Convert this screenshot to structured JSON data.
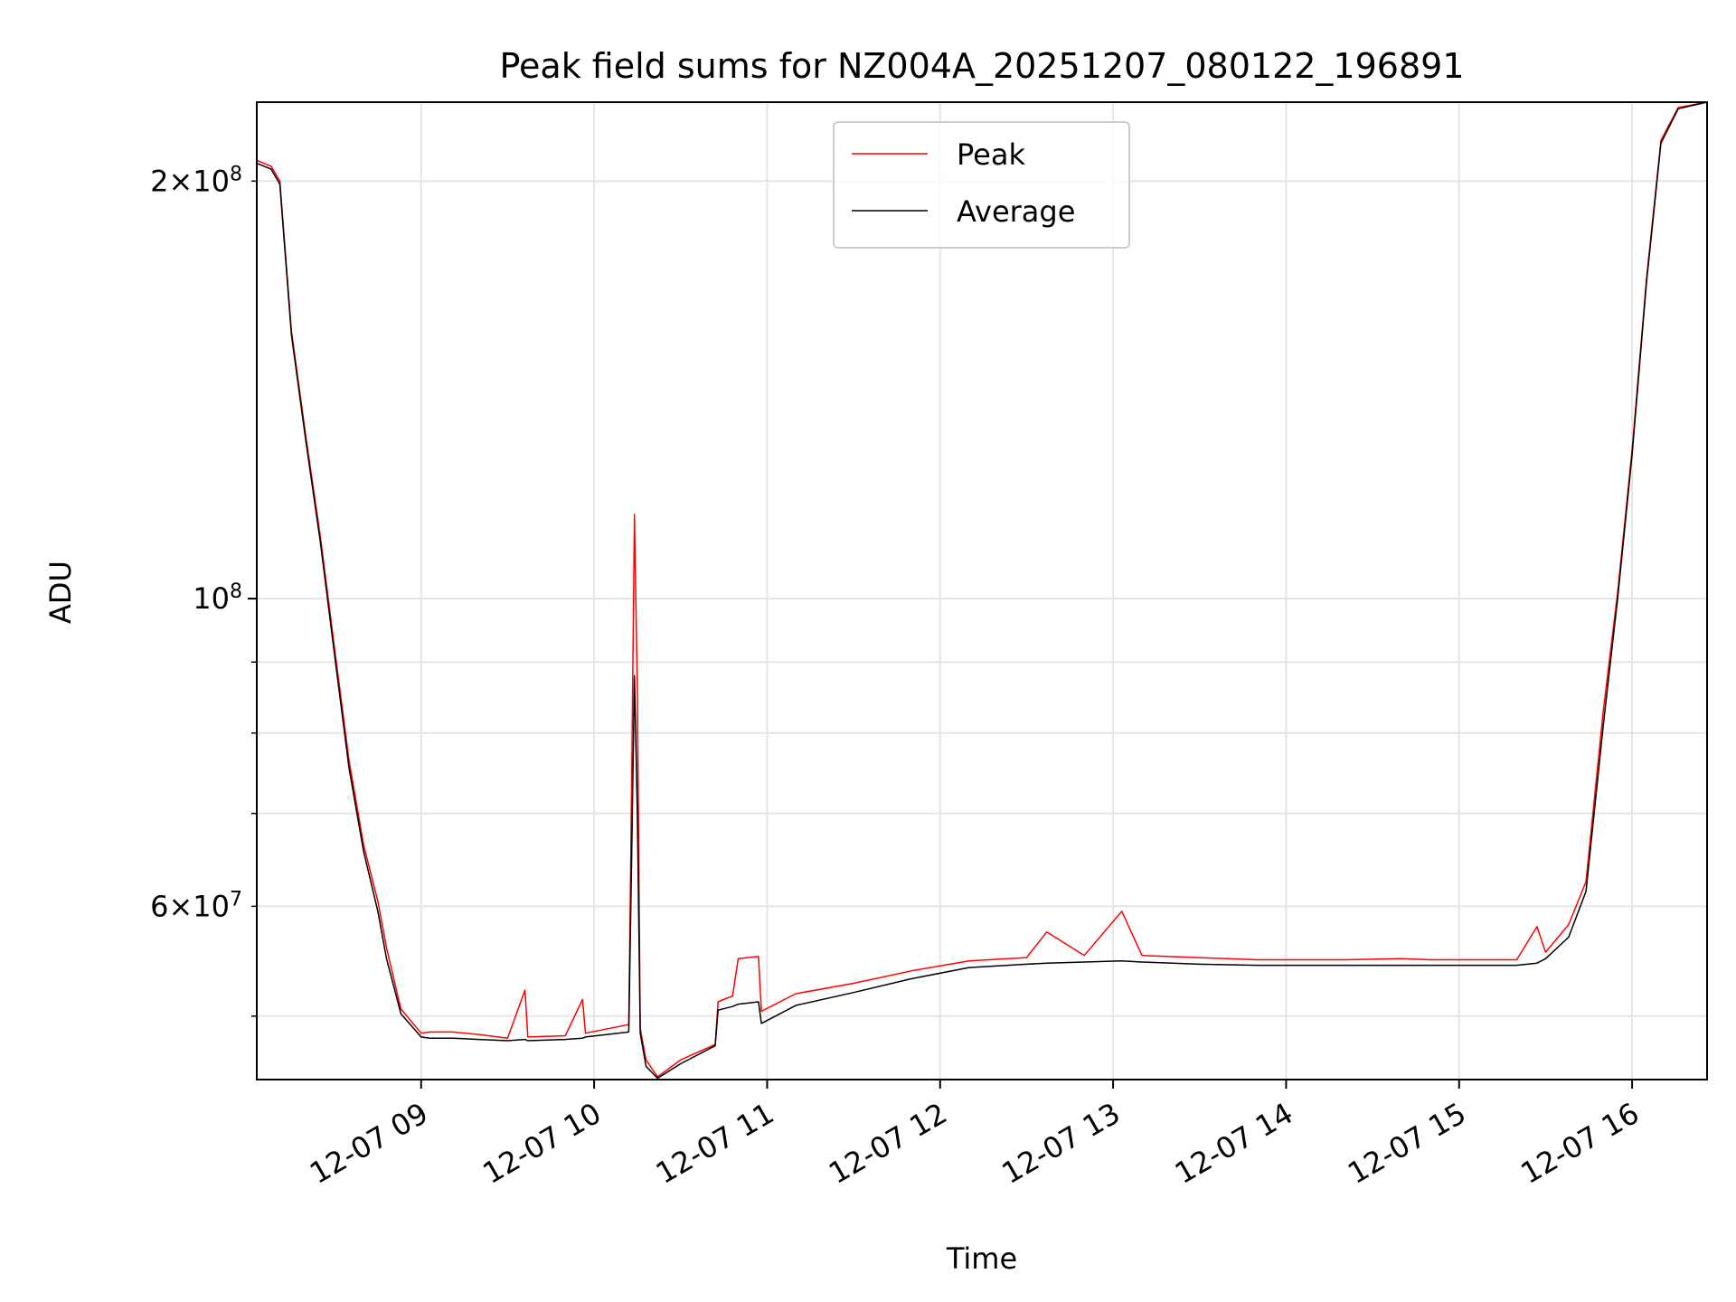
{
  "chart_data": {
    "type": "line",
    "title": "Peak field sums for NZ004A_20251207_080122_196891",
    "xlabel": "Time",
    "ylabel": "ADU",
    "y_scale": "log",
    "x_range": [
      "2025-12-07 08:03",
      "2025-12-07 16:26"
    ],
    "ylim": [
      45000000,
      228000000
    ],
    "x_ticks": [
      {
        "t": "2025-12-07 09:00",
        "label": "12-07 09"
      },
      {
        "t": "2025-12-07 10:00",
        "label": "12-07 10"
      },
      {
        "t": "2025-12-07 11:00",
        "label": "12-07 11"
      },
      {
        "t": "2025-12-07 12:00",
        "label": "12-07 12"
      },
      {
        "t": "2025-12-07 13:00",
        "label": "12-07 13"
      },
      {
        "t": "2025-12-07 14:00",
        "label": "12-07 14"
      },
      {
        "t": "2025-12-07 15:00",
        "label": "12-07 15"
      },
      {
        "t": "2025-12-07 16:00",
        "label": "12-07 16"
      }
    ],
    "y_major_ticks": [
      {
        "value": 100000000,
        "base": "10",
        "exp": "8"
      }
    ],
    "y_labeled_minor_ticks": [
      {
        "value": 200000000,
        "mant": "2",
        "base": "10",
        "exp": "8"
      },
      {
        "value": 60000000,
        "mant": "6",
        "base": "10",
        "exp": "7"
      }
    ],
    "y_minor_ticks": [
      50000000,
      60000000,
      70000000,
      80000000,
      90000000,
      200000000
    ],
    "grid": true,
    "legend_position": "top-center",
    "series": [
      {
        "name": "Peak",
        "color": "#ff0000",
        "points": [
          [
            "2025-12-07 08:03",
            207000000
          ],
          [
            "2025-12-07 08:08",
            205000000
          ],
          [
            "2025-12-07 08:11",
            200000000
          ],
          [
            "2025-12-07 08:15",
            156000000
          ],
          [
            "2025-12-07 08:20",
            131000000
          ],
          [
            "2025-12-07 08:25",
            111000000
          ],
          [
            "2025-12-07 08:30",
            92000000
          ],
          [
            "2025-12-07 08:35",
            76500000
          ],
          [
            "2025-12-07 08:40",
            66500000
          ],
          [
            "2025-12-07 08:45",
            60500000
          ],
          [
            "2025-12-07 08:48",
            56000000
          ],
          [
            "2025-12-07 08:53",
            50600000
          ],
          [
            "2025-12-07 09:00",
            48600000
          ],
          [
            "2025-12-07 09:03",
            48700000
          ],
          [
            "2025-12-07 09:11",
            48700000
          ],
          [
            "2025-12-07 09:20",
            48500000
          ],
          [
            "2025-12-07 09:30",
            48200000
          ],
          [
            "2025-12-07 09:36",
            52200000
          ],
          [
            "2025-12-07 09:37",
            48300000
          ],
          [
            "2025-12-07 09:50",
            48400000
          ],
          [
            "2025-12-07 09:56",
            51400000
          ],
          [
            "2025-12-07 09:57",
            48600000
          ],
          [
            "2025-12-07 10:12",
            49300000
          ],
          [
            "2025-12-07 10:13",
            73500000
          ],
          [
            "2025-12-07 10:14",
            115000000
          ],
          [
            "2025-12-07 10:15",
            86000000
          ],
          [
            "2025-12-07 10:16",
            49000000
          ],
          [
            "2025-12-07 10:18",
            46500000
          ],
          [
            "2025-12-07 10:22",
            45200000
          ],
          [
            "2025-12-07 10:30",
            46500000
          ],
          [
            "2025-12-07 10:42",
            47700000
          ],
          [
            "2025-12-07 10:43",
            51200000
          ],
          [
            "2025-12-07 10:48",
            51700000
          ],
          [
            "2025-12-07 10:50",
            55000000
          ],
          [
            "2025-12-07 10:57",
            55200000
          ],
          [
            "2025-12-07 10:58",
            50400000
          ],
          [
            "2025-12-07 11:10",
            51900000
          ],
          [
            "2025-12-07 11:30",
            52800000
          ],
          [
            "2025-12-07 11:50",
            53900000
          ],
          [
            "2025-12-07 12:10",
            54800000
          ],
          [
            "2025-12-07 12:30",
            55100000
          ],
          [
            "2025-12-07 12:37",
            57500000
          ],
          [
            "2025-12-07 12:50",
            55300000
          ],
          [
            "2025-12-07 13:03",
            59500000
          ],
          [
            "2025-12-07 13:10",
            55300000
          ],
          [
            "2025-12-07 13:30",
            55100000
          ],
          [
            "2025-12-07 13:50",
            54900000
          ],
          [
            "2025-12-07 14:20",
            54900000
          ],
          [
            "2025-12-07 14:40",
            55000000
          ],
          [
            "2025-12-07 14:50",
            54900000
          ],
          [
            "2025-12-07 15:20",
            54900000
          ],
          [
            "2025-12-07 15:27",
            58000000
          ],
          [
            "2025-12-07 15:30",
            55600000
          ],
          [
            "2025-12-07 15:38",
            58200000
          ],
          [
            "2025-12-07 15:44",
            62500000
          ],
          [
            "2025-12-07 15:50",
            83000000
          ],
          [
            "2025-12-07 15:55",
            101000000
          ],
          [
            "2025-12-07 16:00",
            128000000
          ],
          [
            "2025-12-07 16:05",
            170000000
          ],
          [
            "2025-12-07 16:10",
            214000000
          ],
          [
            "2025-12-07 16:16",
            226000000
          ],
          [
            "2025-12-07 16:26",
            228000000
          ]
        ]
      },
      {
        "name": "Average",
        "color": "#000000",
        "points": [
          [
            "2025-12-07 08:03",
            206000000
          ],
          [
            "2025-12-07 08:08",
            204000000
          ],
          [
            "2025-12-07 08:11",
            199000000
          ],
          [
            "2025-12-07 08:15",
            155000000
          ],
          [
            "2025-12-07 08:20",
            130000000
          ],
          [
            "2025-12-07 08:25",
            110000000
          ],
          [
            "2025-12-07 08:30",
            91000000
          ],
          [
            "2025-12-07 08:35",
            75500000
          ],
          [
            "2025-12-07 08:40",
            65800000
          ],
          [
            "2025-12-07 08:45",
            59500000
          ],
          [
            "2025-12-07 08:48",
            55000000
          ],
          [
            "2025-12-07 08:53",
            50200000
          ],
          [
            "2025-12-07 09:00",
            48300000
          ],
          [
            "2025-12-07 09:03",
            48200000
          ],
          [
            "2025-12-07 09:11",
            48200000
          ],
          [
            "2025-12-07 09:20",
            48100000
          ],
          [
            "2025-12-07 09:30",
            48000000
          ],
          [
            "2025-12-07 09:36",
            48100000
          ],
          [
            "2025-12-07 09:37",
            48000000
          ],
          [
            "2025-12-07 09:50",
            48100000
          ],
          [
            "2025-12-07 09:56",
            48200000
          ],
          [
            "2025-12-07 09:57",
            48300000
          ],
          [
            "2025-12-07 10:12",
            48700000
          ],
          [
            "2025-12-07 10:13",
            65000000
          ],
          [
            "2025-12-07 10:14",
            88000000
          ],
          [
            "2025-12-07 10:15",
            70000000
          ],
          [
            "2025-12-07 10:16",
            48600000
          ],
          [
            "2025-12-07 10:18",
            46000000
          ],
          [
            "2025-12-07 10:22",
            45100000
          ],
          [
            "2025-12-07 10:30",
            46200000
          ],
          [
            "2025-12-07 10:42",
            47600000
          ],
          [
            "2025-12-07 10:43",
            50500000
          ],
          [
            "2025-12-07 10:48",
            50800000
          ],
          [
            "2025-12-07 10:50",
            51000000
          ],
          [
            "2025-12-07 10:57",
            51200000
          ],
          [
            "2025-12-07 10:58",
            49400000
          ],
          [
            "2025-12-07 11:10",
            50900000
          ],
          [
            "2025-12-07 11:30",
            52000000
          ],
          [
            "2025-12-07 11:50",
            53200000
          ],
          [
            "2025-12-07 12:10",
            54200000
          ],
          [
            "2025-12-07 12:30",
            54500000
          ],
          [
            "2025-12-07 12:37",
            54600000
          ],
          [
            "2025-12-07 12:50",
            54700000
          ],
          [
            "2025-12-07 13:03",
            54800000
          ],
          [
            "2025-12-07 13:10",
            54700000
          ],
          [
            "2025-12-07 13:30",
            54500000
          ],
          [
            "2025-12-07 13:50",
            54400000
          ],
          [
            "2025-12-07 14:20",
            54400000
          ],
          [
            "2025-12-07 14:40",
            54400000
          ],
          [
            "2025-12-07 14:50",
            54400000
          ],
          [
            "2025-12-07 15:20",
            54400000
          ],
          [
            "2025-12-07 15:27",
            54600000
          ],
          [
            "2025-12-07 15:30",
            55000000
          ],
          [
            "2025-12-07 15:38",
            57000000
          ],
          [
            "2025-12-07 15:44",
            61500000
          ],
          [
            "2025-12-07 15:50",
            81000000
          ],
          [
            "2025-12-07 15:55",
            100000000
          ],
          [
            "2025-12-07 16:00",
            127000000
          ],
          [
            "2025-12-07 16:05",
            169000000
          ],
          [
            "2025-12-07 16:10",
            213000000
          ],
          [
            "2025-12-07 16:16",
            225500000
          ],
          [
            "2025-12-07 16:26",
            228000000
          ]
        ]
      }
    ]
  }
}
